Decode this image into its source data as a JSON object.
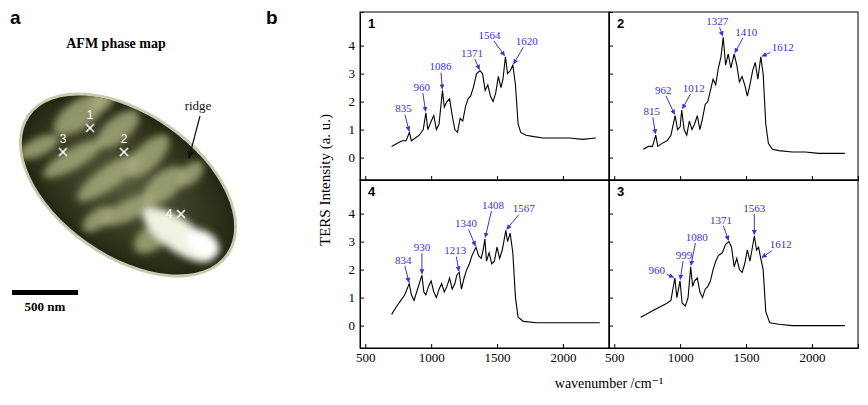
{
  "figure": {
    "panel_labels": [
      "a",
      "b"
    ],
    "afm": {
      "title": "AFM phase map",
      "markers": [
        "1",
        "2",
        "3",
        "4"
      ],
      "ridge": "ridge",
      "scale_bar": "500 nm"
    },
    "y_title": "TERS Intensity (a. u.)",
    "x_title": "wavenumber /cm⁻¹"
  },
  "chart_data": [
    {
      "type": "line",
      "title": "1",
      "color": "#000000",
      "xlim": [
        460,
        2350
      ],
      "ylim": [
        -0.8,
        5.2
      ],
      "xticks": [
        500,
        1000,
        1500,
        2000
      ],
      "yticks": [
        0,
        1,
        2,
        3,
        4
      ],
      "tick_labels": "y",
      "x": [
        700,
        740,
        780,
        810,
        835,
        850,
        880,
        910,
        940,
        960,
        975,
        1000,
        1020,
        1040,
        1060,
        1086,
        1100,
        1120,
        1140,
        1160,
        1180,
        1200,
        1220,
        1240,
        1260,
        1280,
        1300,
        1320,
        1345,
        1371,
        1390,
        1410,
        1430,
        1450,
        1470,
        1490,
        1510,
        1530,
        1545,
        1564,
        1580,
        1600,
        1620,
        1640,
        1660,
        1680,
        1720,
        1780,
        1850,
        1950,
        2050,
        2150,
        2250
      ],
      "values": [
        0.4,
        0.5,
        0.6,
        0.6,
        0.9,
        0.6,
        0.7,
        0.8,
        1.0,
        1.6,
        1.0,
        1.3,
        1.5,
        1.0,
        1.2,
        2.4,
        1.8,
        2.0,
        2.1,
        1.5,
        1.0,
        0.9,
        1.4,
        1.3,
        1.8,
        2.1,
        2.2,
        2.5,
        3.0,
        3.1,
        3.0,
        2.4,
        2.6,
        2.2,
        2.0,
        2.3,
        2.9,
        2.5,
        2.8,
        3.6,
        3.0,
        3.1,
        3.3,
        2.6,
        1.2,
        0.9,
        0.8,
        0.75,
        0.7,
        0.7,
        0.7,
        0.65,
        0.7
      ],
      "annotations": [
        {
          "text": "835",
          "x": 835
        },
        {
          "text": "960",
          "x": 960
        },
        {
          "text": "1086",
          "x": 1086
        },
        {
          "text": "1371",
          "x": 1371
        },
        {
          "text": "1564",
          "x": 1564
        },
        {
          "text": "1620",
          "x": 1620
        }
      ]
    },
    {
      "type": "line",
      "title": "2",
      "color": "#000000",
      "xlim": [
        460,
        2350
      ],
      "ylim": [
        -0.8,
        5.2
      ],
      "xticks": [
        500,
        1000,
        1500,
        2000
      ],
      "yticks": [
        0,
        1,
        2,
        3,
        4
      ],
      "tick_labels": false,
      "x": [
        720,
        760,
        790,
        815,
        830,
        860,
        900,
        930,
        962,
        980,
        1000,
        1012,
        1030,
        1050,
        1070,
        1090,
        1110,
        1130,
        1150,
        1170,
        1190,
        1210,
        1230,
        1250,
        1270,
        1290,
        1310,
        1327,
        1345,
        1365,
        1385,
        1410,
        1430,
        1450,
        1470,
        1490,
        1510,
        1530,
        1550,
        1570,
        1590,
        1612,
        1630,
        1650,
        1670,
        1700,
        1750,
        1850,
        1950,
        2050,
        2150,
        2250
      ],
      "values": [
        0.3,
        0.4,
        0.4,
        0.8,
        0.4,
        0.5,
        0.6,
        0.8,
        1.5,
        1.0,
        1.1,
        1.7,
        1.0,
        0.8,
        1.3,
        1.0,
        1.2,
        1.5,
        1.0,
        1.4,
        1.9,
        2.0,
        2.4,
        2.8,
        2.6,
        3.2,
        3.6,
        4.3,
        3.3,
        3.7,
        3.2,
        3.7,
        3.3,
        2.7,
        2.9,
        2.6,
        2.2,
        2.6,
        3.1,
        3.4,
        2.8,
        3.6,
        3.0,
        1.2,
        0.5,
        0.3,
        0.25,
        0.2,
        0.2,
        0.15,
        0.15,
        0.15
      ],
      "annotations": [
        {
          "text": "815",
          "x": 815
        },
        {
          "text": "962",
          "x": 962
        },
        {
          "text": "1012",
          "x": 1012
        },
        {
          "text": "1327",
          "x": 1327
        },
        {
          "text": "1410",
          "x": 1410
        },
        {
          "text": "1612",
          "x": 1612
        }
      ]
    },
    {
      "type": "line",
      "title": "4",
      "color": "#000000",
      "xlim": [
        460,
        2350
      ],
      "ylim": [
        -0.8,
        5.2
      ],
      "xticks": [
        500,
        1000,
        1500,
        2000
      ],
      "yticks": [
        0,
        1,
        2,
        3,
        4
      ],
      "tick_labels": true,
      "x": [
        700,
        740,
        770,
        800,
        834,
        850,
        870,
        890,
        910,
        930,
        945,
        960,
        980,
        1000,
        1020,
        1040,
        1060,
        1080,
        1100,
        1120,
        1140,
        1160,
        1180,
        1195,
        1213,
        1230,
        1250,
        1270,
        1290,
        1310,
        1340,
        1360,
        1380,
        1395,
        1408,
        1420,
        1440,
        1460,
        1480,
        1500,
        1520,
        1540,
        1567,
        1580,
        1600,
        1620,
        1640,
        1660,
        1700,
        1800,
        1900,
        2000,
        2100,
        2200,
        2280
      ],
      "values": [
        0.4,
        0.7,
        0.9,
        1.1,
        1.5,
        1.1,
        0.9,
        1.2,
        1.5,
        1.8,
        1.2,
        1.1,
        1.4,
        1.6,
        1.2,
        1.0,
        1.3,
        1.5,
        1.2,
        1.4,
        1.7,
        1.3,
        1.5,
        1.8,
        1.9,
        1.3,
        1.7,
        2.0,
        2.2,
        2.5,
        2.8,
        2.5,
        2.4,
        2.7,
        3.1,
        2.3,
        2.6,
        2.2,
        2.3,
        2.8,
        2.4,
        2.7,
        3.4,
        3.0,
        3.3,
        2.6,
        1.0,
        0.3,
        0.15,
        0.1,
        0.1,
        0.1,
        0.1,
        0.1,
        0.1
      ],
      "annotations": [
        {
          "text": "834",
          "x": 834
        },
        {
          "text": "930",
          "x": 930
        },
        {
          "text": "1213",
          "x": 1213
        },
        {
          "text": "1340",
          "x": 1340
        },
        {
          "text": "1408",
          "x": 1408
        },
        {
          "text": "1567",
          "x": 1567
        }
      ]
    },
    {
      "type": "line",
      "title": "3",
      "color": "#000000",
      "xlim": [
        460,
        2350
      ],
      "ylim": [
        -0.8,
        5.2
      ],
      "xticks": [
        500,
        1000,
        1500,
        2000
      ],
      "yticks": [
        0,
        1,
        2,
        3,
        4
      ],
      "tick_labels": "x",
      "x": [
        700,
        740,
        780,
        820,
        860,
        900,
        930,
        960,
        975,
        999,
        1015,
        1040,
        1060,
        1080,
        1095,
        1110,
        1130,
        1150,
        1170,
        1190,
        1210,
        1230,
        1250,
        1270,
        1290,
        1320,
        1345,
        1371,
        1390,
        1410,
        1430,
        1450,
        1470,
        1490,
        1510,
        1530,
        1545,
        1563,
        1580,
        1595,
        1612,
        1630,
        1650,
        1680,
        1750,
        1850,
        1950,
        2050,
        2150,
        2250
      ],
      "values": [
        0.3,
        0.4,
        0.5,
        0.6,
        0.7,
        0.8,
        0.9,
        1.7,
        1.0,
        1.6,
        0.8,
        0.7,
        1.0,
        2.1,
        1.4,
        1.6,
        1.7,
        1.2,
        1.0,
        1.3,
        1.4,
        1.6,
        2.0,
        2.3,
        2.5,
        2.6,
        2.9,
        3.0,
        2.8,
        2.1,
        2.4,
        2.0,
        1.9,
        2.2,
        2.7,
        2.3,
        2.7,
        3.2,
        2.7,
        2.8,
        2.4,
        2.0,
        0.5,
        0.1,
        0.05,
        0.0,
        0.0,
        0.0,
        0.0,
        0.0
      ],
      "annotations": [
        {
          "text": "960",
          "x": 960
        },
        {
          "text": "999",
          "x": 999
        },
        {
          "text": "1080",
          "x": 1080
        },
        {
          "text": "1371",
          "x": 1371
        },
        {
          "text": "1563",
          "x": 1563
        },
        {
          "text": "1612",
          "x": 1612
        }
      ]
    }
  ]
}
